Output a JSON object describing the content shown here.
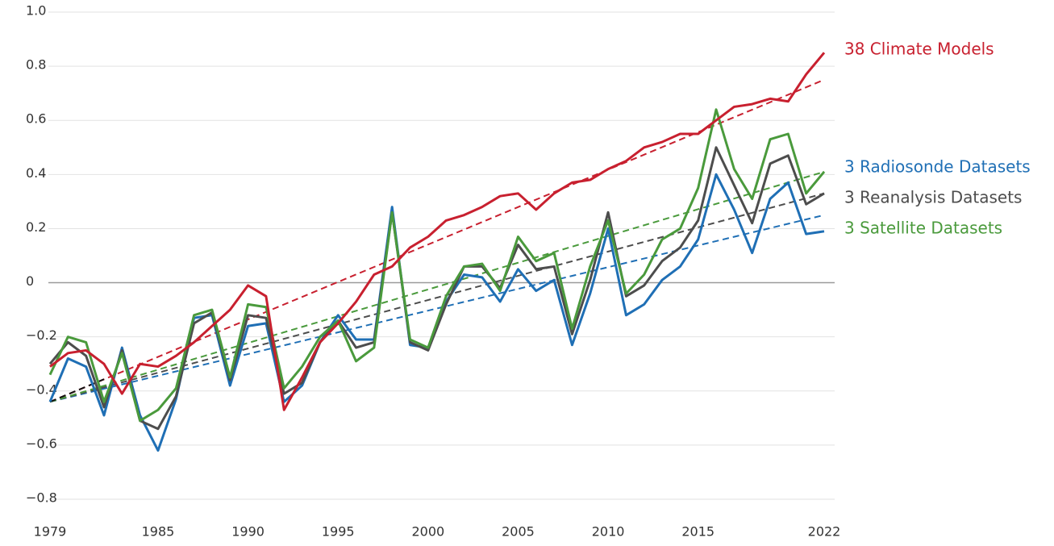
{
  "chart_data": {
    "type": "line",
    "x": [
      1979,
      1980,
      1981,
      1982,
      1983,
      1984,
      1985,
      1986,
      1987,
      1988,
      1989,
      1990,
      1991,
      1992,
      1993,
      1994,
      1995,
      1996,
      1997,
      1998,
      1999,
      2000,
      2001,
      2002,
      2003,
      2004,
      2005,
      2006,
      2007,
      2008,
      2009,
      2010,
      2011,
      2012,
      2013,
      2014,
      2015,
      2016,
      2017,
      2018,
      2019,
      2020,
      2021,
      2022
    ],
    "xlim": [
      1979,
      2022
    ],
    "xticks": [
      1979,
      1985,
      1990,
      1995,
      2000,
      2005,
      2010,
      2015,
      2022
    ],
    "ylim": [
      -0.8,
      1.0
    ],
    "yticks": [
      {
        "value": -0.8,
        "label": "−0.8"
      },
      {
        "value": -0.6,
        "label": "−0.6"
      },
      {
        "value": -0.4,
        "label": "−0.4"
      },
      {
        "value": -0.2,
        "label": "−0.2"
      },
      0,
      0.2,
      0.4,
      0.6,
      0.8,
      {
        "value": 1,
        "label": "1.0"
      }
    ],
    "grid": true,
    "series": [
      {
        "name": "38 Climate Models",
        "color": "#c8202f",
        "trend": [
          -0.44,
          0.75
        ],
        "values": [
          -0.31,
          -0.26,
          -0.25,
          -0.3,
          -0.41,
          -0.3,
          -0.31,
          -0.27,
          -0.22,
          -0.16,
          -0.1,
          -0.01,
          -0.05,
          -0.47,
          -0.35,
          -0.22,
          -0.15,
          -0.07,
          0.03,
          0.06,
          0.13,
          0.17,
          0.23,
          0.25,
          0.28,
          0.32,
          0.33,
          0.27,
          0.33,
          0.37,
          0.38,
          0.42,
          0.45,
          0.5,
          0.52,
          0.55,
          0.55,
          0.6,
          0.65,
          0.66,
          0.68,
          0.67,
          0.77,
          0.85
        ]
      },
      {
        "name": "3 Radiosonde Datasets",
        "color": "#1f6fb5",
        "trend": [
          -0.44,
          0.25
        ],
        "values": [
          -0.44,
          -0.28,
          -0.31,
          -0.49,
          -0.24,
          -0.49,
          -0.62,
          -0.43,
          -0.13,
          -0.12,
          -0.38,
          -0.16,
          -0.15,
          -0.44,
          -0.38,
          -0.22,
          -0.12,
          -0.21,
          -0.21,
          0.28,
          -0.23,
          -0.24,
          -0.07,
          0.03,
          0.02,
          -0.07,
          0.05,
          -0.03,
          0.01,
          -0.23,
          -0.04,
          0.2,
          -0.12,
          -0.08,
          0.01,
          0.06,
          0.16,
          0.4,
          0.27,
          0.11,
          0.31,
          0.37,
          0.18,
          0.19
        ]
      },
      {
        "name": "3 Reanalysis Datasets",
        "color": "#4d4d4d",
        "trend": [
          -0.44,
          0.33
        ],
        "values": [
          -0.3,
          -0.22,
          -0.27,
          -0.46,
          -0.25,
          -0.51,
          -0.54,
          -0.42,
          -0.15,
          -0.11,
          -0.36,
          -0.12,
          -0.13,
          -0.41,
          -0.37,
          -0.22,
          -0.14,
          -0.24,
          -0.22,
          0.26,
          -0.22,
          -0.25,
          -0.08,
          0.06,
          0.06,
          -0.02,
          0.14,
          0.05,
          0.06,
          -0.19,
          0.01,
          0.26,
          -0.05,
          -0.01,
          0.08,
          0.13,
          0.23,
          0.5,
          0.36,
          0.22,
          0.44,
          0.47,
          0.29,
          0.33
        ]
      },
      {
        "name": "3 Satellite Datasets",
        "color": "#4a9a3c",
        "trend": [
          -0.44,
          0.41
        ],
        "values": [
          -0.34,
          -0.2,
          -0.22,
          -0.44,
          -0.26,
          -0.51,
          -0.47,
          -0.39,
          -0.12,
          -0.1,
          -0.35,
          -0.08,
          -0.09,
          -0.39,
          -0.31,
          -0.2,
          -0.14,
          -0.29,
          -0.24,
          0.26,
          -0.21,
          -0.24,
          -0.05,
          0.06,
          0.07,
          -0.03,
          0.17,
          0.08,
          0.11,
          -0.17,
          0.06,
          0.23,
          -0.04,
          0.03,
          0.16,
          0.2,
          0.35,
          0.64,
          0.42,
          0.31,
          0.53,
          0.55,
          0.33,
          0.41
        ]
      }
    ]
  }
}
